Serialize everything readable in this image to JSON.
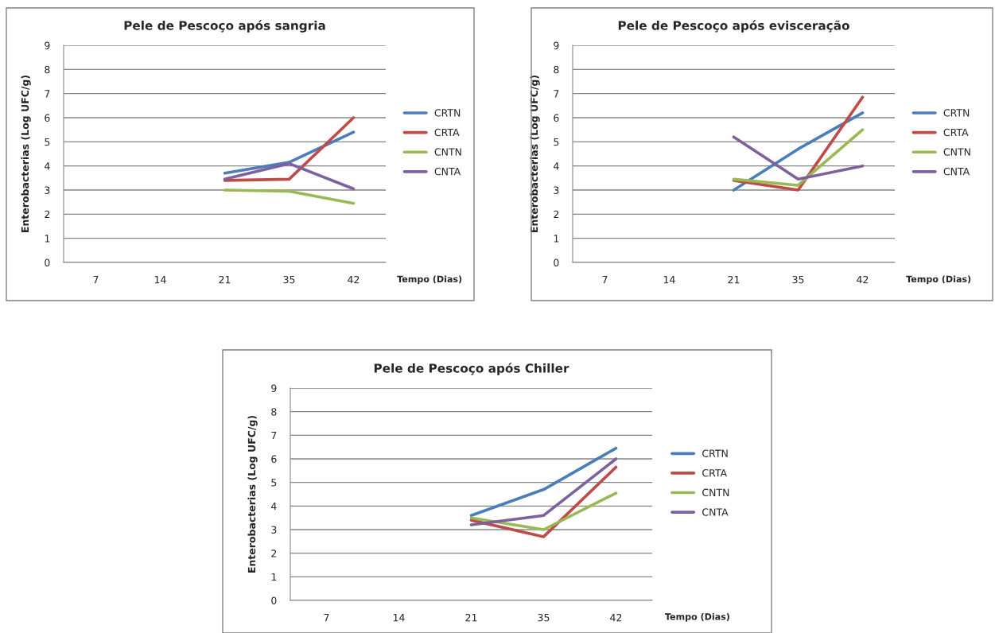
{
  "chart_data": [
    {
      "type": "line",
      "title": "Pele de Pescoço após sangria",
      "xlabel": "Tempo (Dias)",
      "ylabel": "Enterobacterias (Log UFC/g)",
      "categories": [
        "7",
        "14",
        "21",
        "35",
        "42"
      ],
      "ylim": [
        0,
        9
      ],
      "yticks": [
        0,
        1,
        2,
        3,
        4,
        5,
        6,
        7,
        8,
        9
      ],
      "grid": "y",
      "legend": "right",
      "series": [
        {
          "name": "CRTN",
          "color": "#4a7ebb",
          "values": [
            null,
            null,
            3.7,
            4.15,
            5.4
          ]
        },
        {
          "name": "CRTA",
          "color": "#be4b48",
          "values": [
            null,
            null,
            3.4,
            3.45,
            6.0
          ]
        },
        {
          "name": "CNTN",
          "color": "#98b954",
          "values": [
            null,
            null,
            3.0,
            2.95,
            2.45
          ]
        },
        {
          "name": "CNTA",
          "color": "#7d60a0",
          "values": [
            null,
            null,
            3.45,
            4.1,
            3.05
          ]
        }
      ]
    },
    {
      "type": "line",
      "title": "Pele de Pescoço após evisceração",
      "xlabel": "Tempo (Dias)",
      "ylabel": "Enterobacterias (Log UFC/g)",
      "categories": [
        "7",
        "14",
        "21",
        "35",
        "42"
      ],
      "ylim": [
        0,
        9
      ],
      "yticks": [
        0,
        1,
        2,
        3,
        4,
        5,
        6,
        7,
        8,
        9
      ],
      "grid": "y",
      "legend": "right",
      "series": [
        {
          "name": "CRTN",
          "color": "#4a7ebb",
          "values": [
            null,
            null,
            3.0,
            4.7,
            6.2
          ]
        },
        {
          "name": "CRTA",
          "color": "#be4b48",
          "values": [
            null,
            null,
            3.4,
            3.0,
            6.85
          ]
        },
        {
          "name": "CNTN",
          "color": "#98b954",
          "values": [
            null,
            null,
            3.45,
            3.2,
            5.5
          ]
        },
        {
          "name": "CNTA",
          "color": "#7d60a0",
          "values": [
            null,
            null,
            5.2,
            3.45,
            4.0
          ]
        }
      ]
    },
    {
      "type": "line",
      "title": "Pele de Pescoço após Chiller",
      "xlabel": "Tempo (Dias)",
      "ylabel": "Enterobacterias (Log UFC/g)",
      "categories": [
        "7",
        "14",
        "21",
        "35",
        "42"
      ],
      "ylim": [
        0,
        9
      ],
      "yticks": [
        0,
        1,
        2,
        3,
        4,
        5,
        6,
        7,
        8,
        9
      ],
      "grid": "y",
      "legend": "right",
      "series": [
        {
          "name": "CRTN",
          "color": "#4a7ebb",
          "values": [
            null,
            null,
            3.6,
            4.7,
            6.45
          ]
        },
        {
          "name": "CRTA",
          "color": "#be4b48",
          "values": [
            null,
            null,
            3.4,
            2.7,
            5.65
          ]
        },
        {
          "name": "CNTN",
          "color": "#98b954",
          "values": [
            null,
            null,
            3.5,
            3.0,
            4.55
          ]
        },
        {
          "name": "CNTA",
          "color": "#7d60a0",
          "values": [
            null,
            null,
            3.2,
            3.6,
            6.0
          ]
        }
      ]
    }
  ]
}
